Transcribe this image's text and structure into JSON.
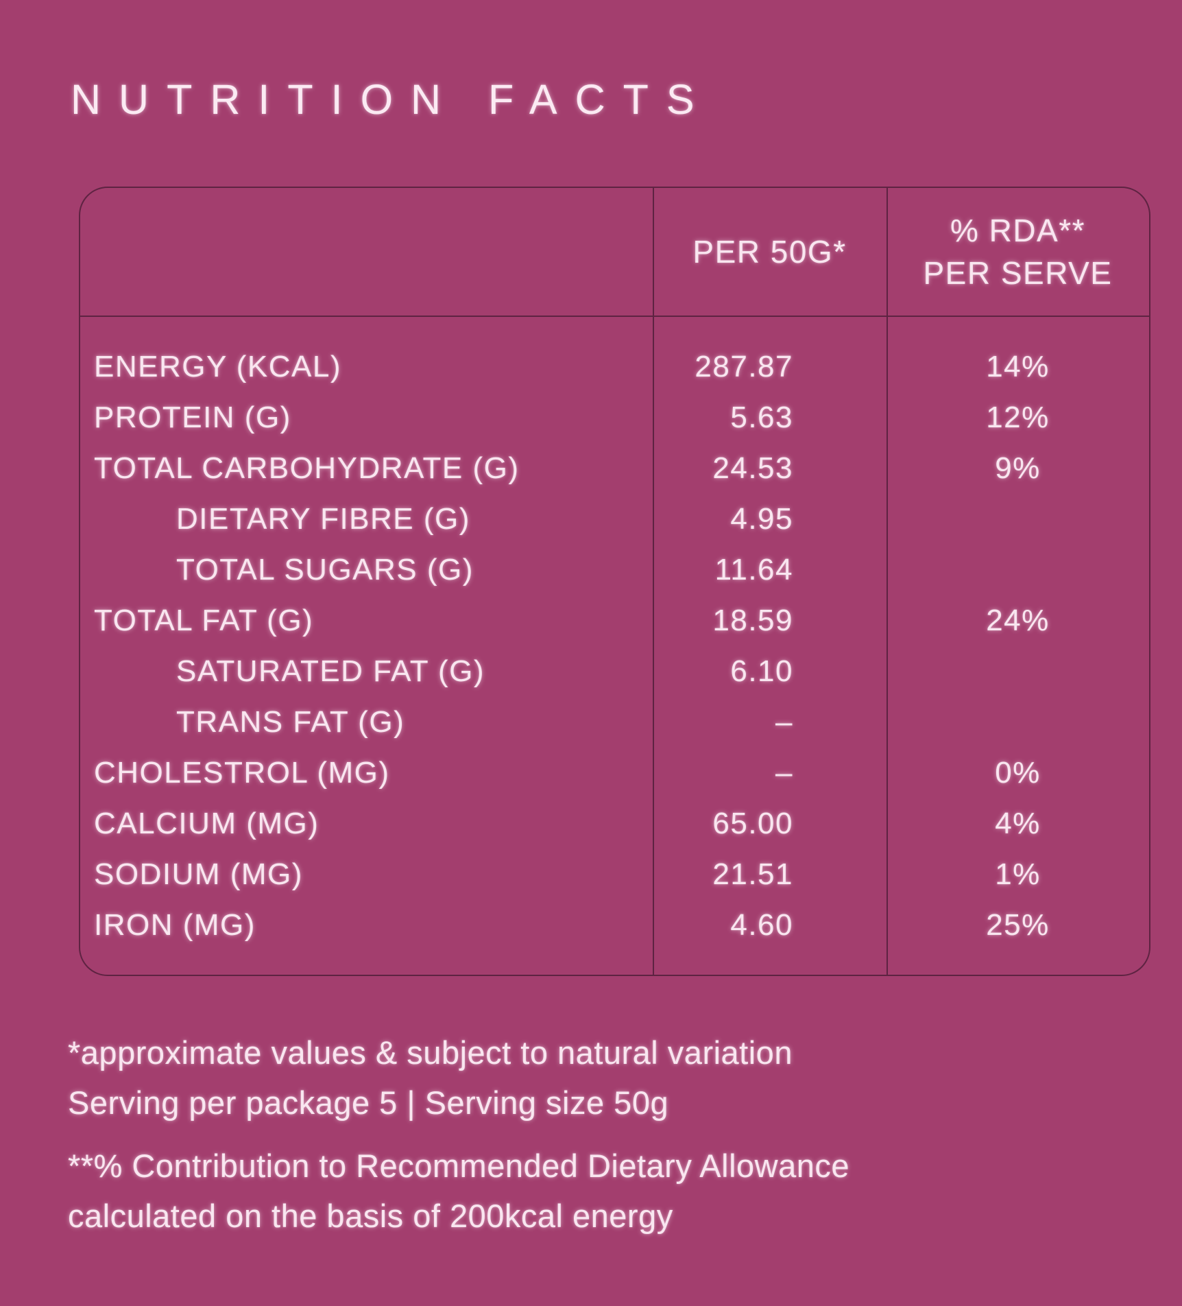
{
  "title": "NUTRITION FACTS",
  "table": {
    "header": {
      "per_serving": "PER 50G*",
      "rda_line1": "% RDA**",
      "rda_line2": "PER SERVE"
    },
    "rows": [
      {
        "label": "ENERGY (KCAL)",
        "per50g": "287.87",
        "rda": "14%"
      },
      {
        "label": "PROTEIN (G)",
        "per50g": "5.63",
        "rda": "12%"
      },
      {
        "label": "TOTAL CARBOHYDRATE (G)",
        "per50g": "24.53",
        "rda": "9%"
      },
      {
        "label": "DIETARY FIBRE (G)",
        "per50g": "4.95",
        "rda": ""
      },
      {
        "label": "TOTAL SUGARS (G)",
        "per50g": "11.64",
        "rda": ""
      },
      {
        "label": "TOTAL FAT (G)",
        "per50g": "18.59",
        "rda": "24%"
      },
      {
        "label": "SATURATED FAT (G)",
        "per50g": "6.10",
        "rda": ""
      },
      {
        "label": "TRANS FAT (G)",
        "per50g": "–",
        "rda": ""
      },
      {
        "label": "CHOLESTROL (MG)",
        "per50g": "–",
        "rda": "0%"
      },
      {
        "label": "CALCIUM (MG)",
        "per50g": "65.00",
        "rda": "4%"
      },
      {
        "label": "SODIUM (MG)",
        "per50g": "21.51",
        "rda": "1%"
      },
      {
        "label": "IRON (MG)",
        "per50g": "4.60",
        "rda": "25%"
      }
    ]
  },
  "footnotes": {
    "line1": "*approximate values & subject to natural variation",
    "line2": "Serving per package 5  |  Serving size 50g",
    "line3": "**% Contribution to Recommended Dietary Allowance",
    "line4": "calculated on the basis of 200kcal energy"
  },
  "colors": {
    "background": "#a33e6e",
    "text": "#f9e6f0",
    "border": "#5e2342"
  }
}
